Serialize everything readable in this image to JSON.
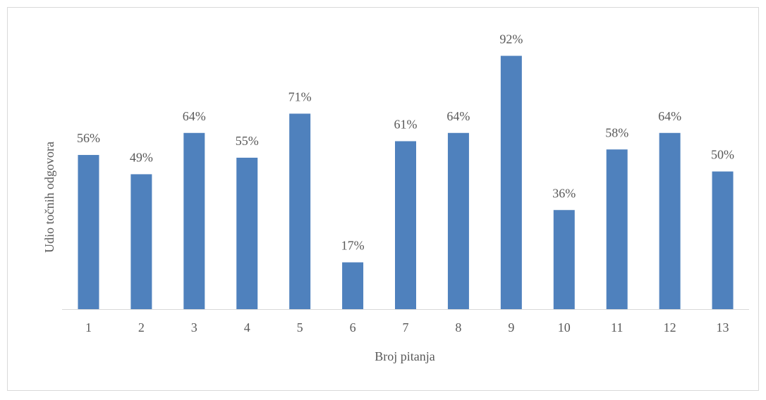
{
  "chart_data": {
    "type": "bar",
    "x_label": "Broj pitanja",
    "y_label": "Udio točnih odgovora",
    "categories": [
      "1",
      "2",
      "3",
      "4",
      "5",
      "6",
      "7",
      "8",
      "9",
      "10",
      "11",
      "12",
      "13"
    ],
    "values": [
      56,
      49,
      64,
      55,
      71,
      17,
      61,
      64,
      92,
      36,
      58,
      64,
      50
    ],
    "value_labels": [
      "56%",
      "49%",
      "64%",
      "55%",
      "71%",
      "17%",
      "61%",
      "64%",
      "92%",
      "36%",
      "58%",
      "64%",
      "50%"
    ],
    "color": "#4f81bd",
    "ylim": [
      0,
      100
    ]
  }
}
